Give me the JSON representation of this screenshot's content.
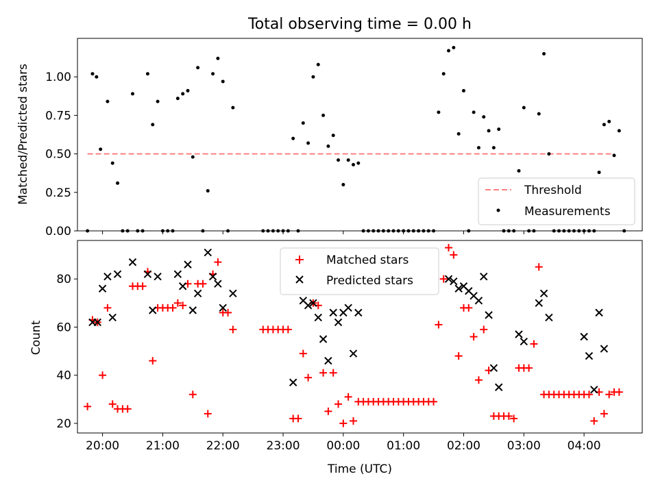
{
  "chart_data": [
    {
      "type": "scatter",
      "title": "Total observing time = 0.00 h",
      "xlabel": "",
      "ylabel": "Matched/Predicted stars",
      "xlim": [
        "19:35",
        "04:58"
      ],
      "ylim": [
        0,
        1.25
      ],
      "yticks": [
        "0.00",
        "0.25",
        "0.50",
        "0.75",
        "1.00"
      ],
      "xticks": [
        "20:00",
        "21:00",
        "22:00",
        "23:00",
        "00:00",
        "01:00",
        "02:00",
        "03:00",
        "04:00"
      ],
      "grid": false,
      "legend_position": "lower right",
      "threshold": {
        "name": "Threshold",
        "color": "#ff8080",
        "style": "dashed",
        "y": 0.5,
        "x_range": [
          "19:45",
          "04:30"
        ]
      },
      "series": [
        {
          "name": "Measurements",
          "color": "#000000",
          "marker": "dot",
          "points": [
            [
              "19:45",
              0.0
            ],
            [
              "19:50",
              1.02
            ],
            [
              "19:54",
              1.0
            ],
            [
              "19:58",
              0.53
            ],
            [
              "20:05",
              0.84
            ],
            [
              "20:10",
              0.44
            ],
            [
              "20:15",
              0.31
            ],
            [
              "20:20",
              0.0
            ],
            [
              "20:25",
              0.0
            ],
            [
              "20:30",
              0.89
            ],
            [
              "20:35",
              0.0
            ],
            [
              "20:40",
              0.0
            ],
            [
              "20:45",
              1.02
            ],
            [
              "20:50",
              0.69
            ],
            [
              "20:55",
              0.84
            ],
            [
              "21:00",
              0.0
            ],
            [
              "21:05",
              0.0
            ],
            [
              "21:10",
              0.0
            ],
            [
              "21:15",
              0.86
            ],
            [
              "21:20",
              0.89
            ],
            [
              "21:25",
              0.91
            ],
            [
              "21:30",
              0.48
            ],
            [
              "21:35",
              1.06
            ],
            [
              "21:40",
              0.0
            ],
            [
              "21:45",
              0.26
            ],
            [
              "21:50",
              1.02
            ],
            [
              "21:55",
              1.12
            ],
            [
              "22:00",
              0.97
            ],
            [
              "22:05",
              0.0
            ],
            [
              "22:10",
              0.8
            ],
            [
              "22:40",
              0.0
            ],
            [
              "22:45",
              0.0
            ],
            [
              "22:50",
              0.0
            ],
            [
              "22:55",
              0.0
            ],
            [
              "23:00",
              0.0
            ],
            [
              "23:05",
              0.0
            ],
            [
              "23:10",
              0.6
            ],
            [
              "23:15",
              0.0
            ],
            [
              "23:20",
              0.7
            ],
            [
              "23:25",
              0.57
            ],
            [
              "23:30",
              1.0
            ],
            [
              "23:35",
              1.08
            ],
            [
              "23:40",
              0.75
            ],
            [
              "23:45",
              0.55
            ],
            [
              "23:50",
              0.62
            ],
            [
              "23:55",
              0.46
            ],
            [
              "00:00",
              0.3
            ],
            [
              "00:05",
              0.46
            ],
            [
              "00:10",
              0.43
            ],
            [
              "00:15",
              0.44
            ],
            [
              "00:20",
              0.0
            ],
            [
              "00:25",
              0.0
            ],
            [
              "00:30",
              0.0
            ],
            [
              "00:35",
              0.0
            ],
            [
              "00:40",
              0.0
            ],
            [
              "00:45",
              0.0
            ],
            [
              "00:50",
              0.0
            ],
            [
              "00:55",
              0.0
            ],
            [
              "01:00",
              0.0
            ],
            [
              "01:05",
              0.0
            ],
            [
              "01:10",
              0.0
            ],
            [
              "01:15",
              0.0
            ],
            [
              "01:20",
              0.0
            ],
            [
              "01:25",
              0.0
            ],
            [
              "01:30",
              0.0
            ],
            [
              "01:35",
              0.77
            ],
            [
              "01:40",
              1.02
            ],
            [
              "01:45",
              1.17
            ],
            [
              "01:50",
              1.19
            ],
            [
              "01:55",
              0.63
            ],
            [
              "02:00",
              0.91
            ],
            [
              "02:05",
              0.0
            ],
            [
              "02:10",
              0.77
            ],
            [
              "02:15",
              0.54
            ],
            [
              "02:20",
              0.74
            ],
            [
              "02:25",
              0.65
            ],
            [
              "02:30",
              0.54
            ],
            [
              "02:35",
              0.66
            ],
            [
              "02:40",
              0.0
            ],
            [
              "02:45",
              0.0
            ],
            [
              "02:50",
              0.0
            ],
            [
              "02:55",
              0.39
            ],
            [
              "03:00",
              0.8
            ],
            [
              "03:05",
              0.0
            ],
            [
              "03:10",
              0.0
            ],
            [
              "03:15",
              0.76
            ],
            [
              "03:20",
              1.15
            ],
            [
              "03:25",
              0.5
            ],
            [
              "03:30",
              0.0
            ],
            [
              "03:35",
              0.0
            ],
            [
              "03:40",
              0.0
            ],
            [
              "03:45",
              0.0
            ],
            [
              "03:50",
              0.0
            ],
            [
              "03:55",
              0.0
            ],
            [
              "04:00",
              0.0
            ],
            [
              "04:05",
              0.0
            ],
            [
              "04:10",
              0.0
            ],
            [
              "04:15",
              0.38
            ],
            [
              "04:20",
              0.69
            ],
            [
              "04:25",
              0.71
            ],
            [
              "04:30",
              0.49
            ],
            [
              "04:35",
              0.65
            ],
            [
              "04:40",
              0.0
            ]
          ]
        }
      ]
    },
    {
      "type": "scatter",
      "title": "",
      "xlabel": "Time (UTC)",
      "ylabel": "Count",
      "xlim": [
        "19:35",
        "04:58"
      ],
      "ylim": [
        16,
        96
      ],
      "yticks": [
        "20",
        "40",
        "60",
        "80"
      ],
      "xticks": [
        "20:00",
        "21:00",
        "22:00",
        "23:00",
        "00:00",
        "01:00",
        "02:00",
        "03:00",
        "04:00"
      ],
      "grid": false,
      "legend_position": "upper center",
      "series": [
        {
          "name": "Matched stars",
          "color": "#ff0000",
          "marker": "plus",
          "points": [
            [
              "19:45",
              27
            ],
            [
              "19:50",
              63
            ],
            [
              "19:55",
              62
            ],
            [
              "20:00",
              40
            ],
            [
              "20:05",
              68
            ],
            [
              "20:10",
              28
            ],
            [
              "20:15",
              26
            ],
            [
              "20:20",
              26
            ],
            [
              "20:25",
              26
            ],
            [
              "20:30",
              77
            ],
            [
              "20:35",
              77
            ],
            [
              "20:40",
              77
            ],
            [
              "20:45",
              83
            ],
            [
              "20:50",
              46
            ],
            [
              "20:55",
              68
            ],
            [
              "21:00",
              68
            ],
            [
              "21:05",
              68
            ],
            [
              "21:10",
              68
            ],
            [
              "21:15",
              70
            ],
            [
              "21:20",
              69
            ],
            [
              "21:25",
              78
            ],
            [
              "21:30",
              32
            ],
            [
              "21:35",
              78
            ],
            [
              "21:40",
              78
            ],
            [
              "21:45",
              24
            ],
            [
              "21:50",
              82
            ],
            [
              "21:55",
              87
            ],
            [
              "22:00",
              66
            ],
            [
              "22:05",
              66
            ],
            [
              "22:10",
              59
            ],
            [
              "22:40",
              59
            ],
            [
              "22:45",
              59
            ],
            [
              "22:50",
              59
            ],
            [
              "22:55",
              59
            ],
            [
              "23:00",
              59
            ],
            [
              "23:05",
              59
            ],
            [
              "23:10",
              22
            ],
            [
              "23:15",
              22
            ],
            [
              "23:20",
              49
            ],
            [
              "23:25",
              39
            ],
            [
              "23:30",
              70
            ],
            [
              "23:35",
              69
            ],
            [
              "23:40",
              41
            ],
            [
              "23:45",
              25
            ],
            [
              "23:50",
              41
            ],
            [
              "23:55",
              28
            ],
            [
              "00:00",
              20
            ],
            [
              "00:05",
              31
            ],
            [
              "00:10",
              21
            ],
            [
              "00:15",
              29
            ],
            [
              "00:20",
              29
            ],
            [
              "00:25",
              29
            ],
            [
              "00:30",
              29
            ],
            [
              "00:35",
              29
            ],
            [
              "00:40",
              29
            ],
            [
              "00:45",
              29
            ],
            [
              "00:50",
              29
            ],
            [
              "00:55",
              29
            ],
            [
              "01:00",
              29
            ],
            [
              "01:05",
              29
            ],
            [
              "01:10",
              29
            ],
            [
              "01:15",
              29
            ],
            [
              "01:20",
              29
            ],
            [
              "01:25",
              29
            ],
            [
              "01:30",
              29
            ],
            [
              "01:35",
              61
            ],
            [
              "01:40",
              80
            ],
            [
              "01:45",
              93
            ],
            [
              "01:50",
              90
            ],
            [
              "01:55",
              48
            ],
            [
              "02:00",
              68
            ],
            [
              "02:05",
              68
            ],
            [
              "02:10",
              56
            ],
            [
              "02:15",
              38
            ],
            [
              "02:20",
              59
            ],
            [
              "02:25",
              42
            ],
            [
              "02:30",
              23
            ],
            [
              "02:35",
              23
            ],
            [
              "02:40",
              23
            ],
            [
              "02:45",
              23
            ],
            [
              "02:50",
              22
            ],
            [
              "02:55",
              43
            ],
            [
              "03:00",
              43
            ],
            [
              "03:05",
              43
            ],
            [
              "03:10",
              53
            ],
            [
              "03:15",
              85
            ],
            [
              "03:20",
              32
            ],
            [
              "03:25",
              32
            ],
            [
              "03:30",
              32
            ],
            [
              "03:35",
              32
            ],
            [
              "03:40",
              32
            ],
            [
              "03:45",
              32
            ],
            [
              "03:50",
              32
            ],
            [
              "03:55",
              32
            ],
            [
              "04:00",
              32
            ],
            [
              "04:05",
              32
            ],
            [
              "04:10",
              21
            ],
            [
              "04:15",
              33
            ],
            [
              "04:20",
              24
            ],
            [
              "04:25",
              32
            ],
            [
              "04:30",
              33
            ],
            [
              "04:35",
              33
            ]
          ]
        },
        {
          "name": "Predicted stars",
          "color": "#000000",
          "marker": "x",
          "points": [
            [
              "19:50",
              62
            ],
            [
              "19:55",
              62
            ],
            [
              "20:00",
              76
            ],
            [
              "20:05",
              81
            ],
            [
              "20:10",
              64
            ],
            [
              "20:15",
              82
            ],
            [
              "20:30",
              87
            ],
            [
              "20:45",
              82
            ],
            [
              "20:50",
              67
            ],
            [
              "20:55",
              81
            ],
            [
              "21:15",
              82
            ],
            [
              "21:20",
              77
            ],
            [
              "21:25",
              86
            ],
            [
              "21:30",
              67
            ],
            [
              "21:35",
              74
            ],
            [
              "21:45",
              91
            ],
            [
              "21:50",
              81
            ],
            [
              "21:55",
              78
            ],
            [
              "22:00",
              68
            ],
            [
              "22:10",
              74
            ],
            [
              "23:10",
              37
            ],
            [
              "23:20",
              71
            ],
            [
              "23:25",
              69
            ],
            [
              "23:30",
              70
            ],
            [
              "23:35",
              64
            ],
            [
              "23:40",
              55
            ],
            [
              "23:45",
              46
            ],
            [
              "23:50",
              66
            ],
            [
              "23:55",
              62
            ],
            [
              "00:00",
              66
            ],
            [
              "00:05",
              68
            ],
            [
              "00:10",
              49
            ],
            [
              "00:15",
              66
            ],
            [
              "01:45",
              80
            ],
            [
              "01:50",
              79
            ],
            [
              "01:55",
              76
            ],
            [
              "02:00",
              77
            ],
            [
              "02:05",
              75
            ],
            [
              "02:10",
              73
            ],
            [
              "02:15",
              71
            ],
            [
              "02:20",
              81
            ],
            [
              "02:25",
              65
            ],
            [
              "02:30",
              43
            ],
            [
              "02:35",
              35
            ],
            [
              "02:55",
              57
            ],
            [
              "03:00",
              54
            ],
            [
              "03:15",
              70
            ],
            [
              "03:20",
              74
            ],
            [
              "03:25",
              64
            ],
            [
              "04:00",
              56
            ],
            [
              "04:05",
              48
            ],
            [
              "04:10",
              34
            ],
            [
              "04:15",
              66
            ],
            [
              "04:20",
              51
            ]
          ]
        }
      ]
    }
  ]
}
